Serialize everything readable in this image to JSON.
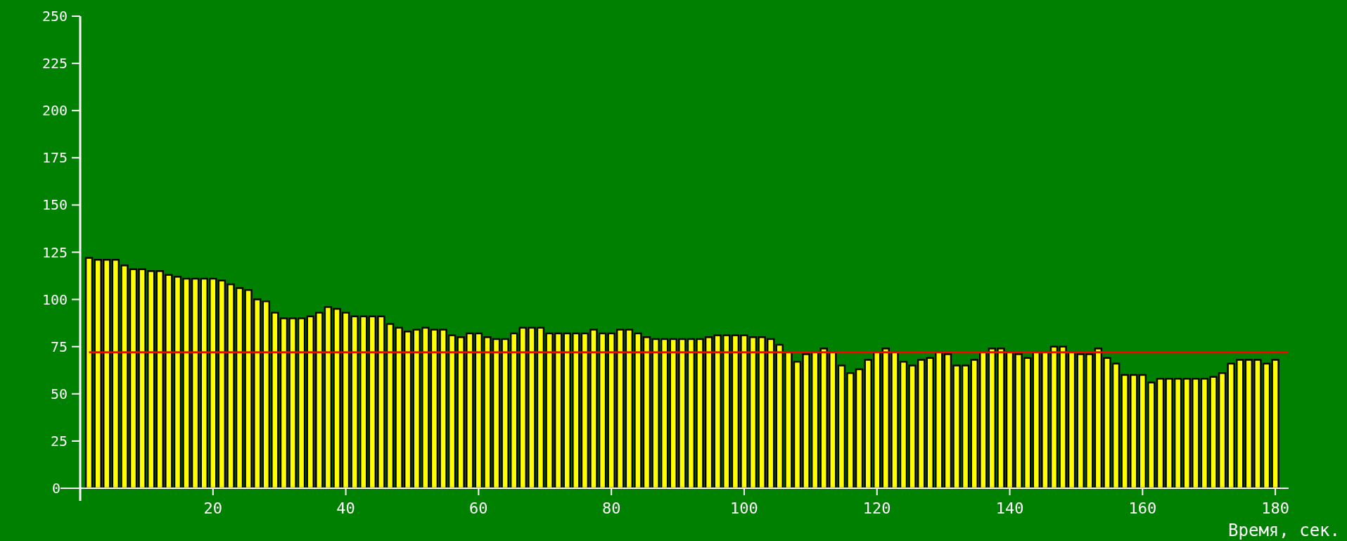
{
  "chart_data": {
    "type": "bar",
    "xlabel": "Время, сек.",
    "x": [
      1.33,
      2.67,
      4,
      5.33,
      6.67,
      8,
      9.33,
      10.67,
      12,
      13.33,
      14.67,
      16,
      17.33,
      18.67,
      20,
      21.33,
      22.67,
      24,
      25.33,
      26.67,
      28,
      29.33,
      30.67,
      32,
      33.33,
      34.67,
      36,
      37.33,
      38.67,
      40,
      41.33,
      42.67,
      44,
      45.33,
      46.67,
      48,
      49.33,
      50.67,
      52,
      53.33,
      54.67,
      56,
      57.33,
      58.67,
      60,
      61.33,
      62.67,
      64,
      65.33,
      66.67,
      68,
      69.33,
      70.67,
      72,
      73.33,
      74.67,
      76,
      77.33,
      78.67,
      80,
      81.33,
      82.67,
      84,
      85.33,
      86.67,
      88,
      89.33,
      90.67,
      92,
      93.33,
      94.67,
      96,
      97.33,
      98.67,
      100,
      101.33,
      102.67,
      104,
      105.33,
      106.67,
      108,
      109.33,
      110.67,
      112,
      113.33,
      114.67,
      116,
      117.33,
      118.67,
      120,
      121.33,
      122.67,
      124,
      125.33,
      126.67,
      128,
      129.33,
      130.67,
      132,
      133.33,
      134.67,
      136,
      137.33,
      138.67,
      140,
      141.33,
      142.67,
      144,
      145.33,
      146.67,
      148,
      149.33,
      150.67,
      152,
      153.33,
      154.67,
      156,
      157.33,
      158.67,
      160,
      161.33,
      162.67,
      164,
      165.33,
      166.67,
      168,
      169.33,
      170.67,
      172,
      173.33,
      174.67,
      176,
      177.33,
      178.67,
      180
    ],
    "series": [
      {
        "color": "#ffff00",
        "values": [
          122,
          121,
          121,
          121,
          118,
          116,
          116,
          115,
          115,
          113,
          112,
          111,
          111,
          111,
          111,
          110,
          108,
          106,
          105,
          100,
          99,
          93,
          90,
          90,
          90,
          91,
          93,
          96,
          95,
          93,
          91,
          91,
          91,
          91,
          87,
          85,
          83,
          84,
          85,
          84,
          84,
          81,
          80,
          82,
          82,
          80,
          79,
          79,
          82,
          85,
          85,
          85,
          82,
          82,
          82,
          82,
          82,
          84,
          82,
          82,
          84,
          84,
          82,
          80,
          79,
          79,
          79,
          79,
          79,
          79,
          80,
          81,
          81,
          81,
          81,
          80,
          80,
          79,
          76,
          72,
          67,
          71,
          72,
          74,
          72,
          65,
          61,
          63,
          68,
          72,
          74,
          72,
          67,
          65,
          68,
          69,
          72,
          71,
          65,
          65,
          68,
          72,
          74,
          74,
          72,
          71,
          69,
          72,
          72,
          75,
          75,
          72,
          71,
          71,
          74,
          69,
          66,
          60,
          60,
          60,
          56,
          58,
          58,
          58,
          58,
          58,
          58,
          59,
          61,
          66,
          68,
          68,
          68,
          66,
          68
        ]
      }
    ],
    "xlim": [
      0,
      182
    ],
    "xticks": [
      20,
      40,
      60,
      80,
      100,
      120,
      140,
      160,
      180
    ],
    "ylim": [
      0,
      250
    ],
    "yticks": [
      0,
      25,
      50,
      75,
      100,
      125,
      150,
      175,
      200,
      225,
      250
    ],
    "ref_lines": [
      {
        "axis": "y",
        "value": 72,
        "color": "#ff0000"
      }
    ],
    "grid": false
  }
}
